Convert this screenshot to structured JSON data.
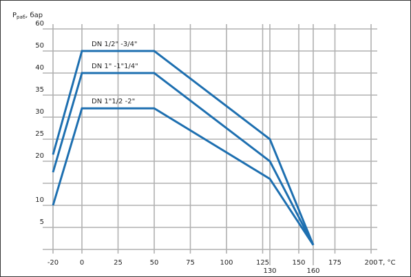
{
  "chart_data": {
    "type": "line",
    "ylabel": "P",
    "ylabel_sub": "раб",
    "ylabel_unit": ", бар",
    "xlabel": "T, °C",
    "x": [
      -20,
      0,
      50,
      130,
      160
    ],
    "series": [
      {
        "name": "DN 1/2\" -3/4\"",
        "color": "#1d6fb0",
        "values": [
          21.5,
          50,
          50,
          25,
          1
        ]
      },
      {
        "name": "DN 1\" -1\"1/4\"",
        "color": "#1d6fb0",
        "values": [
          17.5,
          40,
          40,
          20,
          1
        ]
      },
      {
        "name": "DN 1\"1/2 -2\"",
        "color": "#1d6fb0",
        "values": [
          10,
          32,
          32,
          16,
          1
        ]
      }
    ],
    "xlim": [
      -20,
      200
    ],
    "xticks": [
      -20,
      0,
      25,
      50,
      75,
      100,
      125,
      150,
      175,
      200
    ],
    "xticks_extra": [
      130,
      160
    ],
    "ylim": [
      0,
      60
    ],
    "yticks": [
      5,
      10,
      {
        "value": 15,
        "label": null
      },
      20,
      25,
      30,
      35,
      40,
      50,
      60
    ],
    "grid": true
  }
}
